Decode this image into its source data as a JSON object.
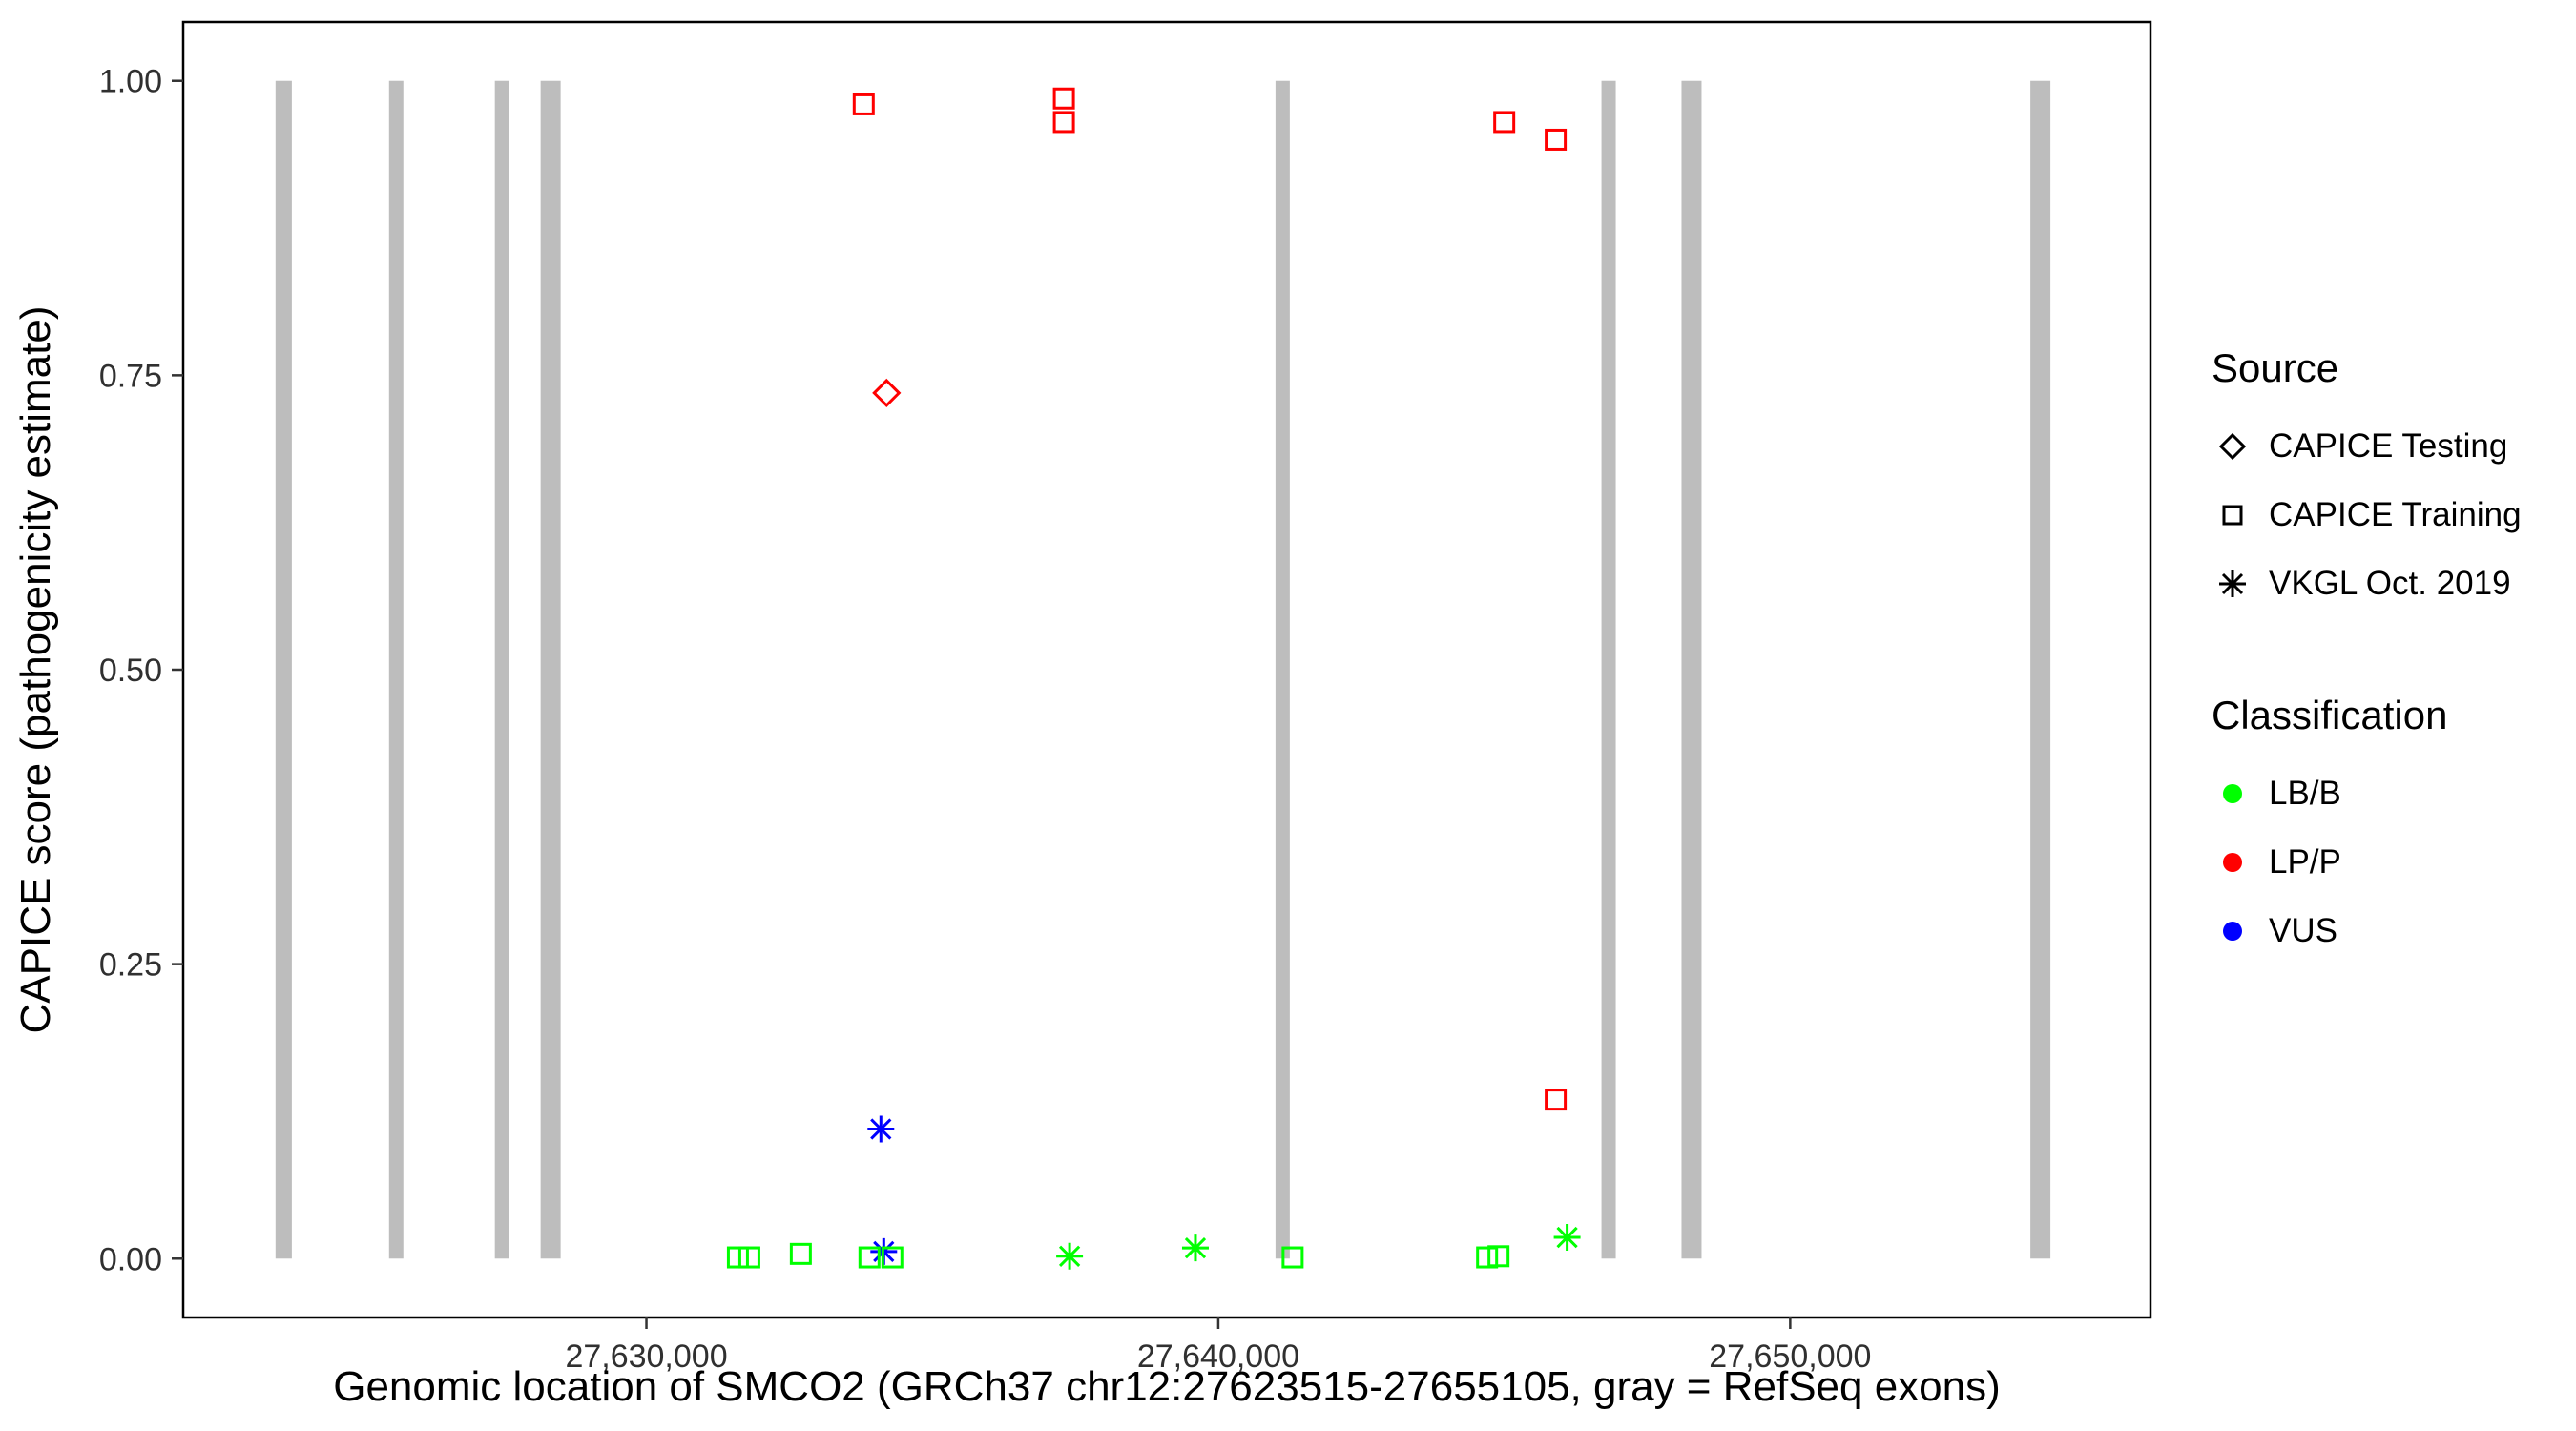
{
  "figure": {
    "background": "#FFFFFF"
  },
  "chart_data": {
    "type": "scatter",
    "title": "",
    "xlabel": "Genomic location of SMCO2 (GRCh37 chr12:27623515-27655105, gray = RefSeq exons)",
    "ylabel": "CAPICE score (pathogenicity estimate)",
    "xlim": [
      27621900,
      27656300
    ],
    "ylim": [
      -0.05,
      1.05
    ],
    "grid": false,
    "legend_position": "right",
    "x_ticks": [
      {
        "value": 27630000,
        "label": "27,630,000"
      },
      {
        "value": 27640000,
        "label": "27,640,000"
      },
      {
        "value": 27650000,
        "label": "27,650,000"
      }
    ],
    "y_ticks": [
      {
        "value": 0.0,
        "label": "0.00"
      },
      {
        "value": 0.25,
        "label": "0.25"
      },
      {
        "value": 0.5,
        "label": "0.50"
      },
      {
        "value": 0.75,
        "label": "0.75"
      },
      {
        "value": 1.0,
        "label": "1.00"
      }
    ],
    "exon_color": "#BDBDBD",
    "exons": [
      {
        "start": 27623515,
        "end": 27623800
      },
      {
        "start": 27625500,
        "end": 27625750
      },
      {
        "start": 27627350,
        "end": 27627600
      },
      {
        "start": 27628150,
        "end": 27628500
      },
      {
        "start": 27641000,
        "end": 27641250
      },
      {
        "start": 27646700,
        "end": 27646950
      },
      {
        "start": 27648100,
        "end": 27648450
      },
      {
        "start": 27654200,
        "end": 27654550
      }
    ],
    "classification_colors": {
      "LB/B": "#00FF00",
      "LP/P": "#FF0000",
      "VUS": "#0000FF"
    },
    "source_shapes": {
      "CAPICE Testing": "diamond",
      "CAPICE Training": "square",
      "VKGL Oct. 2019": "asterisk"
    },
    "points": [
      {
        "x": 27633800,
        "y": 0.98,
        "classification": "LP/P",
        "source": "CAPICE Training"
      },
      {
        "x": 27637300,
        "y": 0.985,
        "classification": "LP/P",
        "source": "CAPICE Training"
      },
      {
        "x": 27637300,
        "y": 0.965,
        "classification": "LP/P",
        "source": "CAPICE Training"
      },
      {
        "x": 27645000,
        "y": 0.965,
        "classification": "LP/P",
        "source": "CAPICE Training"
      },
      {
        "x": 27645900,
        "y": 0.95,
        "classification": "LP/P",
        "source": "CAPICE Training"
      },
      {
        "x": 27645900,
        "y": 0.135,
        "classification": "LP/P",
        "source": "CAPICE Training"
      },
      {
        "x": 27634200,
        "y": 0.735,
        "classification": "LP/P",
        "source": "CAPICE Testing"
      },
      {
        "x": 27634100,
        "y": 0.11,
        "classification": "VUS",
        "source": "VKGL Oct. 2019"
      },
      {
        "x": 27634150,
        "y": 0.006,
        "classification": "VUS",
        "source": "VKGL Oct. 2019"
      },
      {
        "x": 27631600,
        "y": 0.001,
        "classification": "LB/B",
        "source": "CAPICE Training"
      },
      {
        "x": 27631800,
        "y": 0.001,
        "classification": "LB/B",
        "source": "CAPICE Training"
      },
      {
        "x": 27632700,
        "y": 0.004,
        "classification": "LB/B",
        "source": "CAPICE Training"
      },
      {
        "x": 27633900,
        "y": 0.001,
        "classification": "LB/B",
        "source": "CAPICE Training"
      },
      {
        "x": 27634300,
        "y": 0.001,
        "classification": "LB/B",
        "source": "CAPICE Training"
      },
      {
        "x": 27641300,
        "y": 0.001,
        "classification": "LB/B",
        "source": "CAPICE Training"
      },
      {
        "x": 27644700,
        "y": 0.001,
        "classification": "LB/B",
        "source": "CAPICE Training"
      },
      {
        "x": 27644900,
        "y": 0.002,
        "classification": "LB/B",
        "source": "CAPICE Training"
      },
      {
        "x": 27637400,
        "y": 0.002,
        "classification": "LB/B",
        "source": "VKGL Oct. 2019"
      },
      {
        "x": 27639600,
        "y": 0.009,
        "classification": "LB/B",
        "source": "VKGL Oct. 2019"
      },
      {
        "x": 27646100,
        "y": 0.018,
        "classification": "LB/B",
        "source": "VKGL Oct. 2019"
      }
    ]
  },
  "legend": {
    "source": {
      "title": "Source",
      "items": [
        {
          "label": "CAPICE Testing",
          "shape": "diamond"
        },
        {
          "label": "CAPICE Training",
          "shape": "square"
        },
        {
          "label": "VKGL Oct. 2019",
          "shape": "asterisk"
        }
      ]
    },
    "classification": {
      "title": "Classification",
      "items": [
        {
          "label": "LB/B",
          "color": "#00FF00"
        },
        {
          "label": "LP/P",
          "color": "#FF0000"
        },
        {
          "label": "VUS",
          "color": "#0000FF"
        }
      ]
    }
  }
}
